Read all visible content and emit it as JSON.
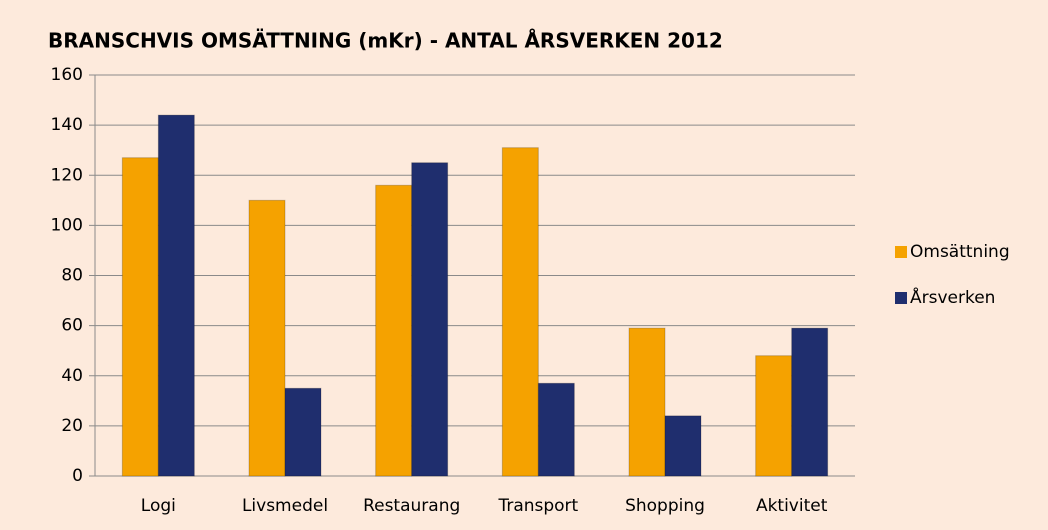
{
  "chart_data": {
    "type": "bar",
    "title": "BRANSCHVIS OMSÄTTNING (mKr) - ANTAL ÅRSVERKEN 2012",
    "categories": [
      "Logi",
      "Livsmedel",
      "Restaurang",
      "Transport",
      "Shopping",
      "Aktivitet"
    ],
    "series": [
      {
        "name": "Omsättning",
        "color": "#f5a200",
        "values": [
          127,
          110,
          116,
          131,
          59,
          48
        ]
      },
      {
        "name": "Årsverken",
        "color": "#1f2e6e",
        "values": [
          144,
          35,
          125,
          37,
          24,
          59
        ]
      }
    ],
    "ylim": [
      0,
      160
    ],
    "yticks": [
      0,
      20,
      40,
      60,
      80,
      100,
      120,
      140,
      160
    ],
    "grid": true,
    "legend": "right"
  }
}
